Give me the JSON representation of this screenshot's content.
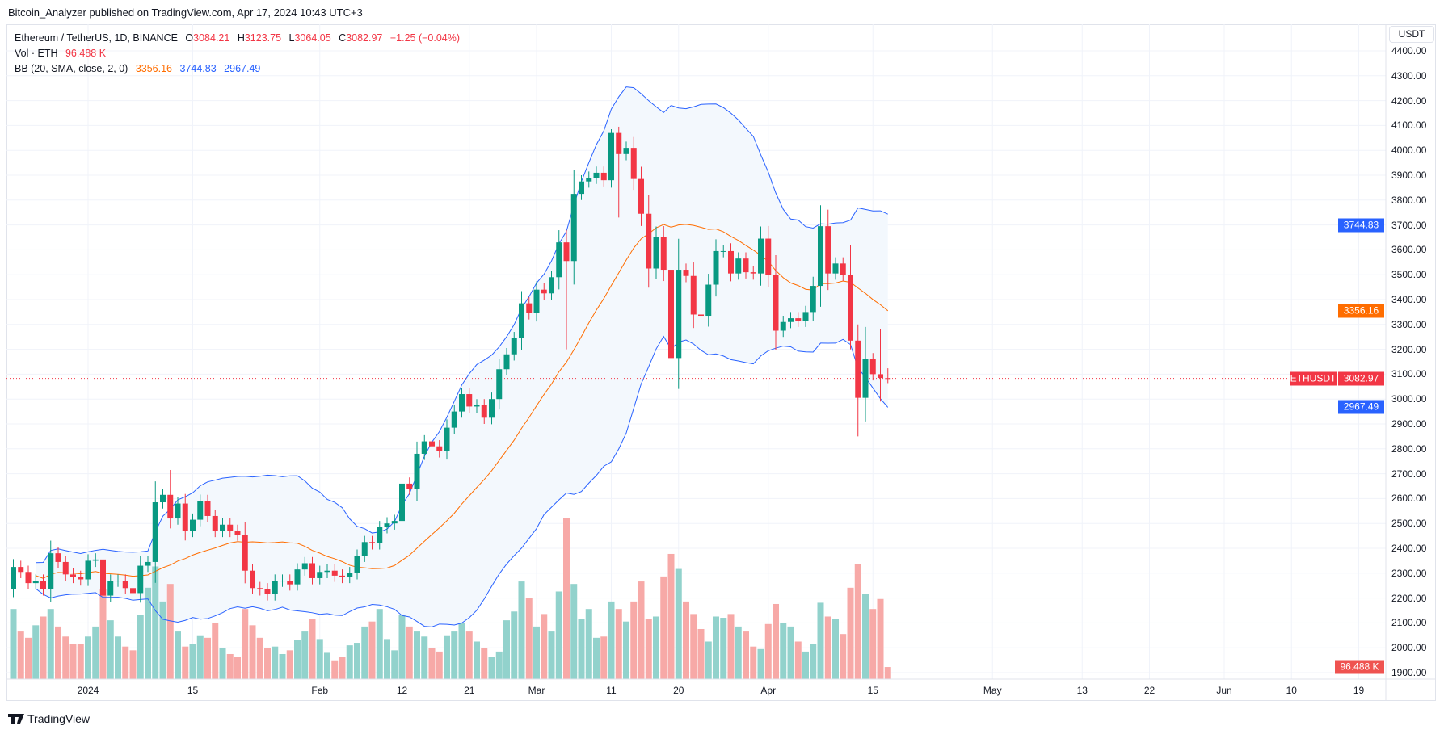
{
  "header": {
    "published": "Bitcoin_Analyzer published on TradingView.com, Apr 17, 2024 10:43 UTC+3"
  },
  "legend": {
    "symbol": "Ethereum / TetherUS, 1D, BINANCE",
    "o_label": "O",
    "o": "3084.21",
    "h_label": "H",
    "h": "3123.75",
    "l_label": "L",
    "l": "3064.05",
    "c_label": "C",
    "c": "3082.97",
    "change": "−1.25 (−0.04%)",
    "vol_label": "Vol · ETH",
    "vol": "96.488 K",
    "bb_label": "BB (20, SMA, close, 2, 0)",
    "bb_basis": "3356.16",
    "bb_upper": "3744.83",
    "bb_lower": "2967.49"
  },
  "price_axis": {
    "currency_button": "USDT",
    "ticks": [
      "4400.00",
      "4300.00",
      "4200.00",
      "4100.00",
      "4000.00",
      "3900.00",
      "3800.00",
      "3700.00",
      "3600.00",
      "3500.00",
      "3400.00",
      "3300.00",
      "3200.00",
      "3100.00",
      "3000.00",
      "2900.00",
      "2800.00",
      "2700.00",
      "2600.00",
      "2500.00",
      "2400.00",
      "2300.00",
      "2200.00",
      "2100.00",
      "2000.00",
      "1900.00"
    ],
    "badges": {
      "upper": "3744.83",
      "basis": "3356.16",
      "last": "3082.97",
      "lower": "2967.49",
      "volume": "96.488 K",
      "symbol": "ETHUSDT"
    }
  },
  "time_axis": {
    "labels": [
      {
        "text": "2024",
        "day": 0
      },
      {
        "text": "15",
        "day": 14
      },
      {
        "text": "Feb",
        "day": 31
      },
      {
        "text": "12",
        "day": 42
      },
      {
        "text": "21",
        "day": 51
      },
      {
        "text": "Mar",
        "day": 60
      },
      {
        "text": "11",
        "day": 70
      },
      {
        "text": "20",
        "day": 79
      },
      {
        "text": "Apr",
        "day": 91
      },
      {
        "text": "15",
        "day": 105
      },
      {
        "text": "May",
        "day": 121
      },
      {
        "text": "13",
        "day": 133
      },
      {
        "text": "22",
        "day": 142
      },
      {
        "text": "Jun",
        "day": 152
      },
      {
        "text": "10",
        "day": 161
      },
      {
        "text": "19",
        "day": 170
      }
    ]
  },
  "colors": {
    "up": "#089981",
    "down": "#f23645",
    "vol_up": "#92d2cc",
    "vol_down": "#f7a9a7",
    "basis": "#ff6d00",
    "band": "#2962ff",
    "band_fill": "#f3f8fd",
    "upper_badge": "#2962ff",
    "basis_badge": "#ff6d00",
    "last_badge": "#f23645",
    "vol_badge": "#ef5350"
  },
  "brand": {
    "name": "TradingView"
  },
  "chart_data": {
    "type": "candlestick",
    "title": "Ethereum / TetherUS, 1D, BINANCE",
    "first_day": "2023-12-22",
    "first_day_index": -10,
    "ylim": [
      1900,
      4400
    ],
    "first_open": 2235,
    "close": [
      2325,
      2305,
      2260,
      2270,
      2235,
      2380,
      2345,
      2295,
      2285,
      2275,
      2350,
      2355,
      2210,
      2270,
      2270,
      2240,
      2220,
      2330,
      2345,
      2585,
      2615,
      2520,
      2580,
      2470,
      2515,
      2590,
      2530,
      2470,
      2495,
      2470,
      2455,
      2310,
      2240,
      2235,
      2215,
      2270,
      2270,
      2255,
      2315,
      2340,
      2280,
      2305,
      2310,
      2290,
      2285,
      2300,
      2370,
      2425,
      2420,
      2485,
      2500,
      2510,
      2660,
      2640,
      2780,
      2830,
      2810,
      2790,
      2885,
      2950,
      3020,
      2970,
      2975,
      2925,
      3000,
      3120,
      3180,
      3245,
      3385,
      3345,
      3440,
      3425,
      3490,
      3630,
      3555,
      3825,
      3875,
      3890,
      3910,
      3880,
      4070,
      3985,
      4010,
      3885,
      3745,
      3525,
      3650,
      3520,
      3165,
      3520,
      3495,
      3340,
      3335,
      3460,
      3595,
      3595,
      3505,
      3565,
      3510,
      3505,
      3645,
      3500,
      3275,
      3310,
      3325,
      3315,
      3350,
      3455,
      3695,
      3505,
      3545,
      3500,
      3235,
      3005,
      3160,
      3100,
      3085,
      3082.97
    ],
    "last_open": 3084.21,
    "wick_overrides": {
      "12": [
        2380,
        2100
      ],
      "21": [
        2715,
        2480
      ],
      "74": [
        3680,
        3200
      ],
      "80": [
        4085,
        3850
      ],
      "81": [
        4095,
        3730
      ],
      "88": [
        3520,
        3060
      ],
      "112": [
        3620,
        3200
      ],
      "113": [
        3300,
        2850
      ],
      "114": [
        3290,
        2910
      ],
      "116": [
        3280,
        2990
      ],
      "117": [
        3123.75,
        3064.05
      ]
    },
    "volume_k": [
      560,
      380,
      330,
      430,
      500,
      560,
      420,
      340,
      280,
      280,
      340,
      420,
      720,
      470,
      340,
      260,
      230,
      510,
      730,
      900,
      620,
      760,
      380,
      260,
      280,
      350,
      330,
      450,
      250,
      200,
      180,
      560,
      430,
      330,
      250,
      260,
      200,
      230,
      310,
      380,
      480,
      320,
      210,
      150,
      180,
      270,
      290,
      420,
      460,
      560,
      320,
      230,
      510,
      420,
      380,
      340,
      250,
      220,
      350,
      380,
      450,
      380,
      300,
      250,
      180,
      220,
      470,
      540,
      780,
      650,
      420,
      520,
      380,
      700,
      1290,
      760,
      480,
      560,
      330,
      340,
      620,
      560,
      460,
      620,
      780,
      480,
      500,
      820,
      1000,
      880,
      620,
      520,
      400,
      300,
      500,
      490,
      520,
      420,
      380,
      260,
      240,
      440,
      600,
      450,
      420,
      300,
      220,
      280,
      610,
      500,
      480,
      360,
      730,
      920,
      680,
      560,
      640,
      96.488
    ],
    "bollinger": {
      "length": 20,
      "mult": 2,
      "basis_last": 3356.16,
      "upper_last": 3744.83,
      "lower_last": 2967.49
    }
  }
}
